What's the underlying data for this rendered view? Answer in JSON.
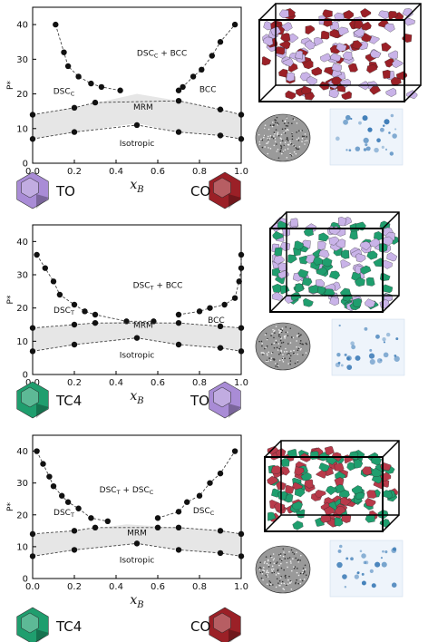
{
  "chart_data": [
    {
      "type": "scatter",
      "xlabel": "x_B",
      "ylabel": "P*",
      "xlim": [
        0,
        1
      ],
      "ylim": [
        0,
        45
      ],
      "x_ticks": [
        "0.0",
        "0.2",
        "0.4",
        "0.6",
        "0.8",
        "1.0"
      ],
      "y_ticks": [
        "0",
        "10",
        "20",
        "30",
        "40"
      ],
      "region_labels": [
        {
          "text": "DSC",
          "sub": "C",
          "suffix": " + BCC",
          "x": 0.62,
          "y": 31
        },
        {
          "text": "DSC",
          "sub": "C",
          "suffix": "",
          "x": 0.15,
          "y": 20
        },
        {
          "text": "BCC",
          "sub": "",
          "suffix": "",
          "x": 0.84,
          "y": 20.5
        },
        {
          "text": "MRM",
          "sub": "",
          "suffix": "",
          "x": 0.53,
          "y": 15.5
        },
        {
          "text": "Isotropic",
          "sub": "",
          "suffix": "",
          "x": 0.5,
          "y": 5
        }
      ],
      "mrm_band": {
        "lower": [
          [
            0.0,
            7
          ],
          [
            0.2,
            9
          ],
          [
            0.5,
            11.5
          ],
          [
            0.7,
            9
          ],
          [
            0.9,
            8
          ],
          [
            1.0,
            7
          ]
        ],
        "upper": [
          [
            0.0,
            14
          ],
          [
            0.2,
            16
          ],
          [
            0.5,
            20
          ],
          [
            0.7,
            18
          ],
          [
            0.9,
            15.5
          ],
          [
            1.0,
            14
          ]
        ]
      },
      "series": [
        {
          "points": [
            [
              0.11,
              40
            ],
            [
              0.15,
              32
            ],
            [
              0.17,
              28
            ],
            [
              0.22,
              25
            ],
            [
              0.28,
              23
            ],
            [
              0.33,
              22
            ],
            [
              0.42,
              21
            ]
          ]
        },
        {
          "points": [
            [
              0.7,
              21
            ],
            [
              0.72,
              22
            ],
            [
              0.77,
              25
            ],
            [
              0.81,
              27
            ],
            [
              0.86,
              31
            ],
            [
              0.9,
              35
            ],
            [
              0.97,
              40
            ]
          ]
        },
        {
          "points": [
            [
              0.0,
              14
            ],
            [
              0.2,
              16
            ],
            [
              0.3,
              17.5
            ],
            [
              0.7,
              18
            ],
            [
              0.9,
              15.5
            ],
            [
              1.0,
              14
            ]
          ]
        },
        {
          "points": [
            [
              0.0,
              7
            ],
            [
              0.2,
              9
            ],
            [
              0.5,
              11
            ],
            [
              0.7,
              9
            ],
            [
              0.9,
              8
            ],
            [
              1.0,
              7
            ]
          ]
        }
      ],
      "legend": [
        {
          "name": "TO",
          "color": "#a98cd6",
          "icon": "purple-truncated-octahedron-icon"
        },
        {
          "name": "CO",
          "color": "#9b2027",
          "icon": "red-cuboctahedron-icon"
        }
      ],
      "legend_text_color": "#111111"
    },
    {
      "type": "scatter",
      "xlabel": "x_B",
      "ylabel": "P*",
      "xlim": [
        0,
        1
      ],
      "ylim": [
        0,
        45
      ],
      "x_ticks": [
        "0.0",
        "0.2",
        "0.4",
        "0.6",
        "0.8",
        "1.0"
      ],
      "y_ticks": [
        "0",
        "10",
        "20",
        "30",
        "40"
      ],
      "region_labels": [
        {
          "text": "DSC",
          "sub": "T",
          "suffix": " + BCC",
          "x": 0.6,
          "y": 26
        },
        {
          "text": "DSC",
          "sub": "T",
          "suffix": "",
          "x": 0.15,
          "y": 18.5
        },
        {
          "text": "BCC",
          "sub": "",
          "suffix": "",
          "x": 0.88,
          "y": 15.5
        },
        {
          "text": "MRM",
          "sub": "",
          "suffix": "",
          "x": 0.53,
          "y": 14
        },
        {
          "text": "Isotropic",
          "sub": "",
          "suffix": "",
          "x": 0.5,
          "y": 5
        }
      ],
      "mrm_band": {
        "lower": [
          [
            0.0,
            7
          ],
          [
            0.2,
            9
          ],
          [
            0.5,
            11
          ],
          [
            0.7,
            9
          ],
          [
            0.9,
            8
          ],
          [
            1.0,
            7
          ]
        ],
        "upper": [
          [
            0.0,
            14
          ],
          [
            0.2,
            15
          ],
          [
            0.45,
            16
          ],
          [
            0.7,
            15.5
          ],
          [
            0.9,
            14.5
          ],
          [
            1.0,
            14
          ]
        ]
      },
      "series": [
        {
          "points": [
            [
              0.02,
              36
            ],
            [
              0.06,
              32
            ],
            [
              0.1,
              28
            ],
            [
              0.13,
              24
            ],
            [
              0.2,
              21
            ],
            [
              0.25,
              19
            ],
            [
              0.3,
              18
            ],
            [
              0.45,
              16
            ],
            [
              0.58,
              16
            ]
          ]
        },
        {
          "points": [
            [
              0.7,
              18
            ],
            [
              0.8,
              19
            ],
            [
              0.85,
              20
            ],
            [
              0.92,
              21
            ],
            [
              0.97,
              23
            ],
            [
              0.99,
              28
            ],
            [
              1.0,
              32
            ],
            [
              1.0,
              36
            ]
          ]
        },
        {
          "points": [
            [
              0.0,
              14
            ],
            [
              0.2,
              15
            ],
            [
              0.3,
              15.5
            ],
            [
              0.7,
              15.5
            ],
            [
              0.9,
              14.5
            ],
            [
              1.0,
              14
            ]
          ]
        },
        {
          "points": [
            [
              0.0,
              7
            ],
            [
              0.2,
              9
            ],
            [
              0.5,
              11
            ],
            [
              0.7,
              9
            ],
            [
              0.9,
              8
            ],
            [
              1.0,
              7
            ]
          ]
        }
      ],
      "legend": [
        {
          "name": "TC4",
          "color": "#1f9e6e",
          "icon": "green-tc4-polyhedron-icon"
        },
        {
          "name": "TO",
          "color": "#a98cd6",
          "icon": "purple-truncated-octahedron-icon"
        }
      ],
      "legend_text_color": "#111111"
    },
    {
      "type": "scatter",
      "xlabel": "x_B",
      "ylabel": "P*",
      "xlim": [
        0,
        1
      ],
      "ylim": [
        0,
        45
      ],
      "x_ticks": [
        "0.0",
        "0.2",
        "0.4",
        "0.6",
        "0.8",
        "1.0"
      ],
      "y_ticks": [
        "0",
        "10",
        "20",
        "30",
        "40"
      ],
      "region_labels": [
        {
          "text": "DSC",
          "sub": "T",
          "suffix": " + DSC",
          "sub2": "C",
          "x": 0.45,
          "y": 27
        },
        {
          "text": "DSC",
          "sub": "T",
          "suffix": "",
          "x": 0.15,
          "y": 20
        },
        {
          "text": "DSC",
          "sub": "C",
          "suffix": "",
          "x": 0.82,
          "y": 20.5
        },
        {
          "text": "MRM",
          "sub": "",
          "suffix": "",
          "x": 0.5,
          "y": 13.5
        },
        {
          "text": "Isotropic",
          "sub": "",
          "suffix": "",
          "x": 0.5,
          "y": 5
        }
      ],
      "mrm_band": {
        "lower": [
          [
            0.0,
            7
          ],
          [
            0.2,
            9
          ],
          [
            0.5,
            11
          ],
          [
            0.7,
            9
          ],
          [
            0.9,
            8
          ],
          [
            1.0,
            7
          ]
        ],
        "upper": [
          [
            0.0,
            14
          ],
          [
            0.2,
            15
          ],
          [
            0.45,
            17
          ],
          [
            0.7,
            16
          ],
          [
            0.9,
            15
          ],
          [
            1.0,
            14
          ]
        ]
      },
      "series": [
        {
          "points": [
            [
              0.02,
              40
            ],
            [
              0.05,
              36
            ],
            [
              0.08,
              32
            ],
            [
              0.1,
              29
            ],
            [
              0.14,
              26
            ],
            [
              0.17,
              24
            ],
            [
              0.22,
              22
            ],
            [
              0.28,
              19
            ],
            [
              0.36,
              18
            ]
          ]
        },
        {
          "points": [
            [
              0.6,
              19
            ],
            [
              0.7,
              21
            ],
            [
              0.74,
              24
            ],
            [
              0.8,
              26
            ],
            [
              0.85,
              30
            ],
            [
              0.9,
              33
            ],
            [
              0.97,
              40
            ]
          ]
        },
        {
          "points": [
            [
              0.0,
              14
            ],
            [
              0.2,
              15
            ],
            [
              0.3,
              16
            ],
            [
              0.6,
              16
            ],
            [
              0.7,
              16
            ],
            [
              0.9,
              15
            ],
            [
              1.0,
              14
            ]
          ]
        },
        {
          "points": [
            [
              0.0,
              7
            ],
            [
              0.2,
              9
            ],
            [
              0.5,
              11
            ],
            [
              0.7,
              9
            ],
            [
              0.9,
              8
            ],
            [
              1.0,
              7
            ]
          ]
        }
      ],
      "legend": [
        {
          "name": "TC4",
          "color": "#1f9e6e",
          "icon": "green-tc4-polyhedron-icon"
        },
        {
          "name": "CO",
          "color": "#9b2027",
          "icon": "red-cuboctahedron-icon"
        }
      ],
      "legend_text_color": "#111111"
    }
  ],
  "snapshots": [
    {
      "box_colors": [
        "#9b2027",
        "#c9b3e8"
      ],
      "icon": "crystal-box-snapshot-icon"
    },
    {
      "box_colors": [
        "#1f9e6e",
        "#c9b3e8"
      ],
      "icon": "crystal-box-snapshot-icon"
    },
    {
      "box_colors": [
        "#1f9e6e",
        "#b83a4a"
      ],
      "icon": "crystal-box-snapshot-icon"
    }
  ],
  "colors": {
    "band": "#e6e6e6",
    "dot": "#111111",
    "line": "#444444",
    "diffraction": "#2a6fb0"
  }
}
